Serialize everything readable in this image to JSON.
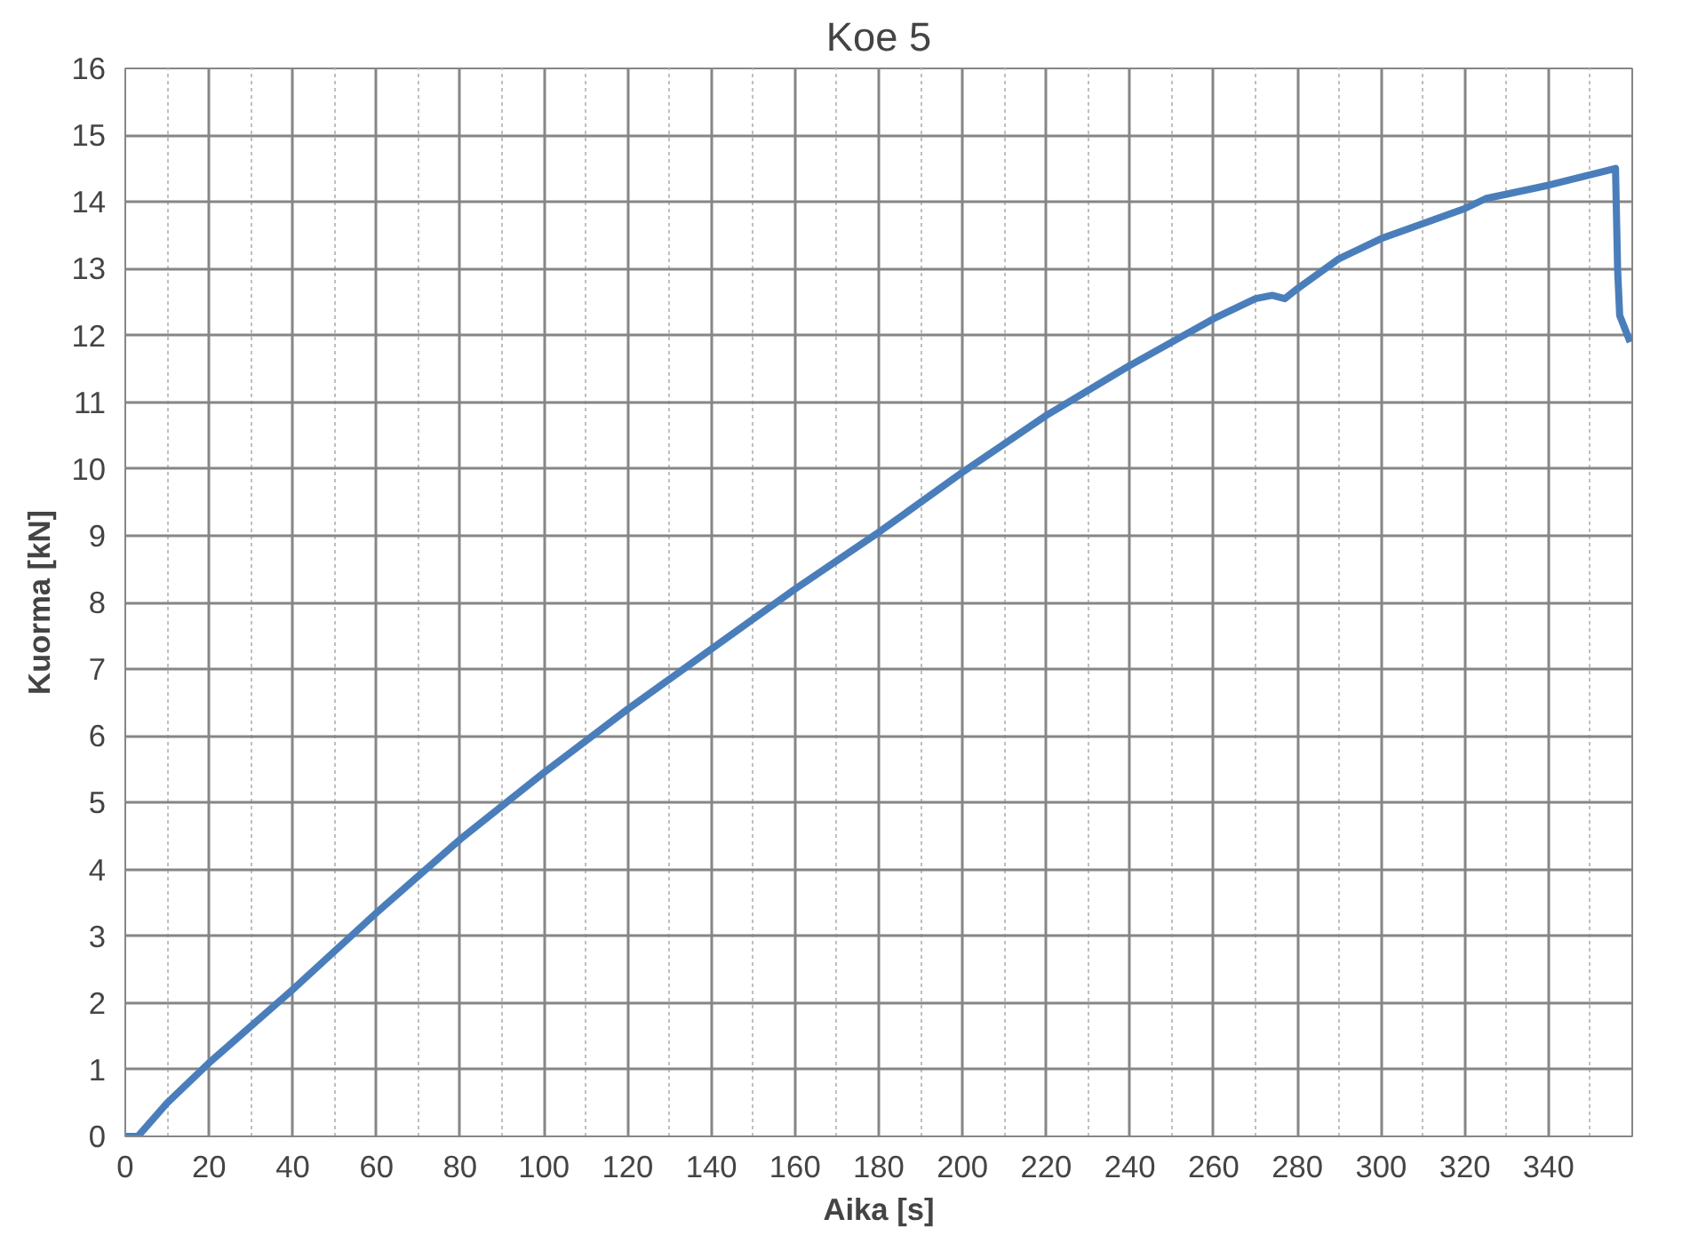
{
  "chart_data": {
    "type": "line",
    "title": "Koe 5",
    "xlabel": "Aika [s]",
    "ylabel": "Kuorma [kN]",
    "x": [
      0,
      3,
      10,
      20,
      30,
      40,
      60,
      80,
      100,
      120,
      140,
      160,
      180,
      200,
      220,
      240,
      260,
      270,
      274,
      277,
      280,
      290,
      300,
      320,
      325,
      340,
      356,
      356.5,
      357,
      359.5
    ],
    "series": [
      {
        "color": "#4a7ebb",
        "values": [
          0,
          0,
          0.5,
          1.1,
          1.65,
          2.2,
          3.35,
          4.45,
          5.45,
          6.4,
          7.3,
          8.2,
          9.05,
          9.95,
          10.8,
          11.55,
          12.25,
          12.55,
          12.6,
          12.55,
          12.7,
          13.15,
          13.45,
          13.9,
          14.05,
          14.25,
          14.5,
          13.0,
          12.3,
          11.9
        ]
      }
    ],
    "xlim": [
      0,
      360
    ],
    "ylim": [
      0,
      16
    ],
    "xticks": [
      0,
      20,
      40,
      60,
      80,
      100,
      120,
      140,
      160,
      180,
      200,
      220,
      240,
      260,
      280,
      300,
      320,
      340,
      {
        "value": 360,
        "label": null
      }
    ],
    "yticks": [
      0,
      1,
      2,
      3,
      4,
      5,
      6,
      7,
      8,
      9,
      10,
      11,
      12,
      13,
      14,
      15,
      16
    ],
    "grid": true,
    "marker": "none",
    "line_style": "solid"
  }
}
